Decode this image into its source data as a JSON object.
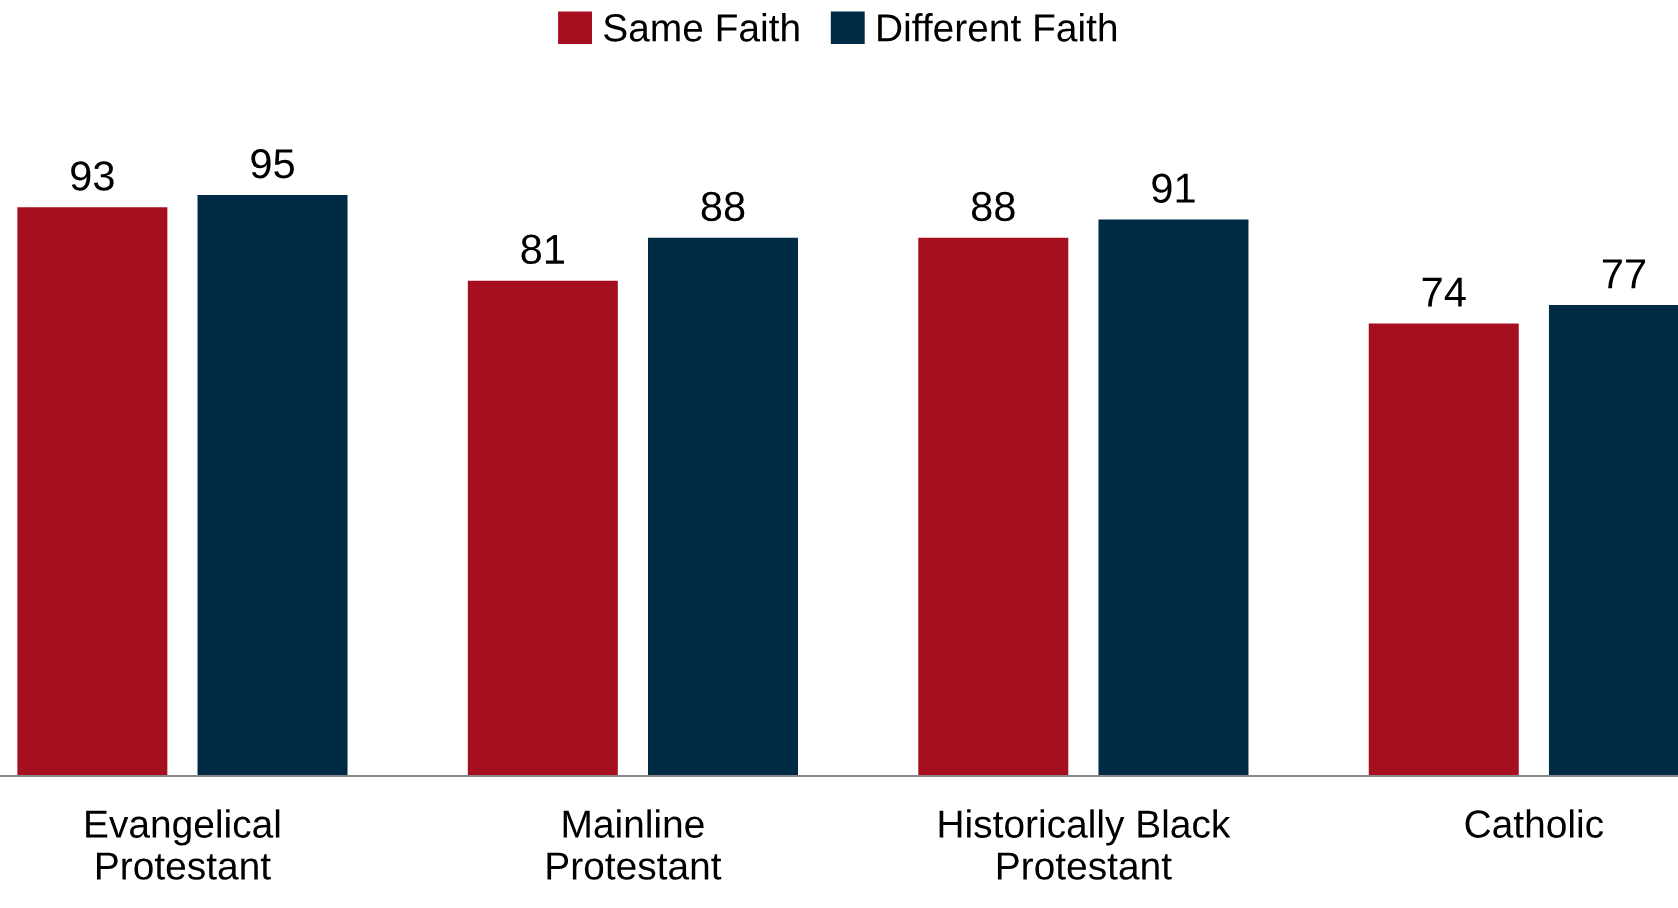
{
  "chart_data": {
    "type": "bar",
    "categories": [
      "Evangelical\nProtestant",
      "Mainline\nProtestant",
      "Historically Black\nProtestant",
      "Catholic"
    ],
    "series": [
      {
        "name": "Same Faith",
        "color": "#a50f1e",
        "values": [
          93,
          81,
          88,
          74
        ]
      },
      {
        "name": "Different Faith",
        "color": "#002b45",
        "values": [
          95,
          88,
          91,
          77
        ]
      }
    ],
    "data_labels": true,
    "legend": "top",
    "grid": false,
    "tick_labels": "x"
  }
}
